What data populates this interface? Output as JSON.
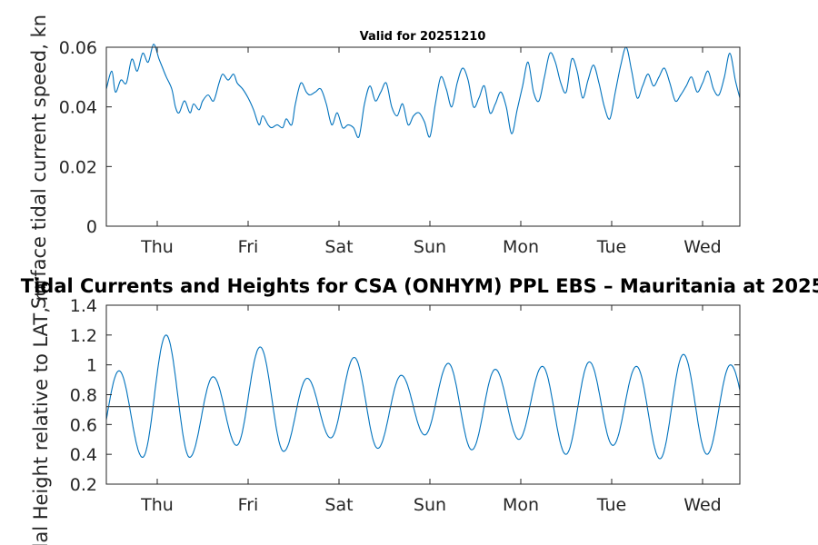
{
  "chart_data": [
    {
      "type": "line",
      "title": "Valid for 20251210",
      "xlabel": "",
      "ylabel": "Surface tidal current speed, kn",
      "x_tick_labels": [
        "Thu",
        "Fri",
        "Sat",
        "Sun",
        "Mon",
        "Tue",
        "Wed"
      ],
      "y_tick_labels": [
        "0",
        "0.02",
        "0.04",
        "0.06"
      ],
      "y_ticks": [
        0,
        0.02,
        0.04,
        0.06
      ],
      "ylim": [
        0,
        0.06
      ],
      "xlim_days": [
        -0.56,
        6.41
      ],
      "series": [
        {
          "name": "current speed",
          "color": "#0072BD",
          "x_days": [
            -0.56,
            -0.5,
            -0.46,
            -0.4,
            -0.34,
            -0.28,
            -0.22,
            -0.16,
            -0.1,
            -0.04,
            0.02,
            0.06,
            0.1,
            0.16,
            0.2,
            0.24,
            0.3,
            0.36,
            0.4,
            0.46,
            0.5,
            0.56,
            0.62,
            0.68,
            0.72,
            0.78,
            0.84,
            0.88,
            0.94,
            1.0,
            1.06,
            1.12,
            1.16,
            1.22,
            1.26,
            1.32,
            1.38,
            1.42,
            1.48,
            1.52,
            1.58,
            1.64,
            1.68,
            1.74,
            1.8,
            1.86,
            1.92,
            1.98,
            2.04,
            2.1,
            2.16,
            2.22,
            2.28,
            2.34,
            2.4,
            2.46,
            2.52,
            2.58,
            2.64,
            2.7,
            2.76,
            2.82,
            2.88,
            2.94,
            3.0,
            3.06,
            3.12,
            3.18,
            3.24,
            3.3,
            3.36,
            3.42,
            3.48,
            3.54,
            3.6,
            3.66,
            3.72,
            3.78,
            3.84,
            3.9,
            3.96,
            4.02,
            4.08,
            4.14,
            4.2,
            4.26,
            4.32,
            4.38,
            4.44,
            4.5,
            4.56,
            4.62,
            4.68,
            4.74,
            4.8,
            4.86,
            4.92,
            4.98,
            5.04,
            5.1,
            5.16,
            5.22,
            5.28,
            5.34,
            5.4,
            5.46,
            5.52,
            5.58,
            5.64,
            5.7,
            5.76,
            5.82,
            5.88,
            5.94,
            6.0,
            6.06,
            6.12,
            6.18,
            6.24,
            6.3,
            6.36,
            6.41
          ],
          "y": [
            0.046,
            0.052,
            0.045,
            0.049,
            0.048,
            0.056,
            0.052,
            0.058,
            0.055,
            0.061,
            0.056,
            0.053,
            0.05,
            0.046,
            0.04,
            0.038,
            0.042,
            0.038,
            0.041,
            0.039,
            0.042,
            0.044,
            0.042,
            0.048,
            0.051,
            0.049,
            0.051,
            0.048,
            0.046,
            0.043,
            0.039,
            0.034,
            0.037,
            0.034,
            0.033,
            0.034,
            0.033,
            0.036,
            0.034,
            0.041,
            0.048,
            0.045,
            0.044,
            0.045,
            0.046,
            0.041,
            0.034,
            0.038,
            0.033,
            0.034,
            0.033,
            0.03,
            0.041,
            0.047,
            0.042,
            0.045,
            0.048,
            0.04,
            0.037,
            0.041,
            0.034,
            0.037,
            0.038,
            0.035,
            0.03,
            0.041,
            0.05,
            0.046,
            0.04,
            0.048,
            0.053,
            0.049,
            0.04,
            0.043,
            0.047,
            0.038,
            0.041,
            0.045,
            0.04,
            0.031,
            0.039,
            0.047,
            0.055,
            0.045,
            0.042,
            0.05,
            0.058,
            0.055,
            0.048,
            0.045,
            0.056,
            0.052,
            0.043,
            0.049,
            0.054,
            0.048,
            0.04,
            0.036,
            0.045,
            0.054,
            0.06,
            0.052,
            0.043,
            0.047,
            0.051,
            0.047,
            0.05,
            0.053,
            0.048,
            0.042,
            0.044,
            0.047,
            0.05,
            0.045,
            0.048,
            0.052,
            0.046,
            0.044,
            0.05,
            0.058,
            0.049,
            0.043
          ]
        }
      ]
    },
    {
      "type": "line",
      "title": "Tidal Currents and Heights for CSA (ONHYM) PPL EBS  – Mauritania at 2025",
      "xlabel": "",
      "ylabel": "Tidal Height relative to LAT, m",
      "x_tick_labels": [
        "Thu",
        "Fri",
        "Sat",
        "Sun",
        "Mon",
        "Tue",
        "Wed"
      ],
      "y_tick_labels": [
        "0.2",
        "0.4",
        "0.6",
        "0.8",
        "1",
        "1.2",
        "1.4"
      ],
      "y_ticks": [
        0.2,
        0.4,
        0.6,
        0.8,
        1.0,
        1.2,
        1.4
      ],
      "ylim": [
        0.2,
        1.4
      ],
      "xlim_days": [
        -0.56,
        6.41
      ],
      "mean_level": 0.72,
      "tidal_highs": [
        0.96,
        1.2,
        0.92,
        1.12,
        0.91,
        1.05,
        0.93,
        1.01,
        0.97,
        0.99,
        1.02,
        0.99,
        1.07,
        1.0
      ],
      "tidal_lows": [
        0.38,
        0.38,
        0.46,
        0.42,
        0.51,
        0.44,
        0.53,
        0.43,
        0.5,
        0.4,
        0.46,
        0.37,
        0.4
      ],
      "series": [
        {
          "name": "tidal height",
          "color": "#0072BD"
        },
        {
          "name": "mean level",
          "color": "#4d4d4d"
        }
      ]
    }
  ]
}
